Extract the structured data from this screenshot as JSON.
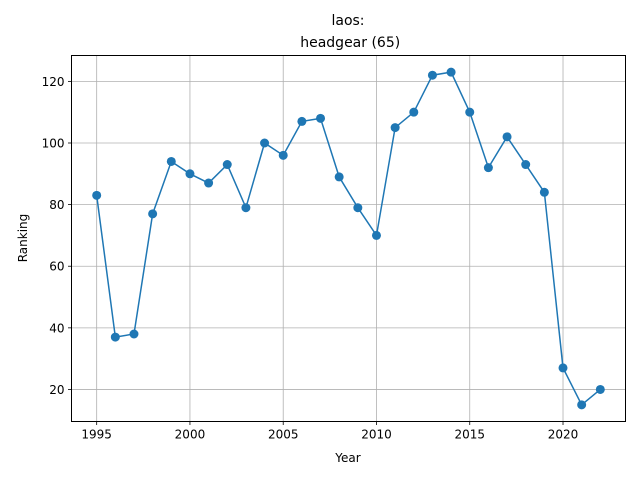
{
  "chart_data": {
    "type": "line",
    "title_line1": "laos:",
    "title_line2": " headgear (65)",
    "xlabel": "Year",
    "ylabel": "Ranking",
    "xlim": [
      1993.65,
      2023.35
    ],
    "ylim": [
      9.6,
      128.4
    ],
    "xticks": [
      1995,
      2000,
      2005,
      2010,
      2015,
      2020
    ],
    "yticks": [
      20,
      40,
      60,
      80,
      100,
      120
    ],
    "grid": true,
    "marker": "circle",
    "color": "#1f77b4",
    "series": [
      {
        "x": [
          1995,
          1996,
          1997,
          1998,
          1999,
          2000,
          2001,
          2002,
          2003,
          2004,
          2005,
          2006,
          2007,
          2008,
          2009,
          2010,
          2011,
          2012,
          2013,
          2014,
          2015,
          2016,
          2017,
          2018,
          2019,
          2020,
          2021,
          2022
        ],
        "values": [
          83,
          37,
          38,
          77,
          94,
          90,
          87,
          93,
          79,
          100,
          96,
          107,
          108,
          89,
          79,
          70,
          105,
          110,
          122,
          123,
          110,
          92,
          102,
          93,
          84,
          27,
          15,
          20
        ]
      }
    ]
  }
}
